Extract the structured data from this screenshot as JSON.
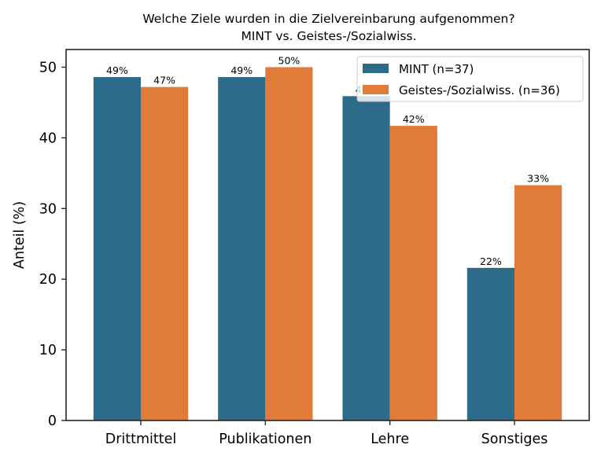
{
  "chart_data": {
    "type": "bar",
    "title": "Welche Ziele wurden in die Zielvereinbarung aufgenommen?",
    "subtitle": "MINT vs. Geistes-/Sozialwiss.",
    "xlabel": "",
    "ylabel": "Anteil (%)",
    "ylim": [
      0,
      52.5
    ],
    "yticks": [
      0,
      10,
      20,
      30,
      40,
      50
    ],
    "grid": false,
    "legend_position": "top-right",
    "categories": [
      "Drittmittel",
      "Publikationen",
      "Lehre",
      "Sonstiges"
    ],
    "series": [
      {
        "name": "MINT (n=37)",
        "color": "#2c6b89",
        "values": [
          48.6,
          48.6,
          45.9,
          21.6
        ],
        "labels": [
          "49%",
          "49%",
          "46%",
          "22%"
        ]
      },
      {
        "name": "Geistes-/Sozialwiss. (n=36)",
        "color": "#e07b39",
        "values": [
          47.2,
          50.0,
          41.7,
          33.3
        ],
        "labels": [
          "47%",
          "50%",
          "42%",
          "33%"
        ]
      }
    ]
  }
}
